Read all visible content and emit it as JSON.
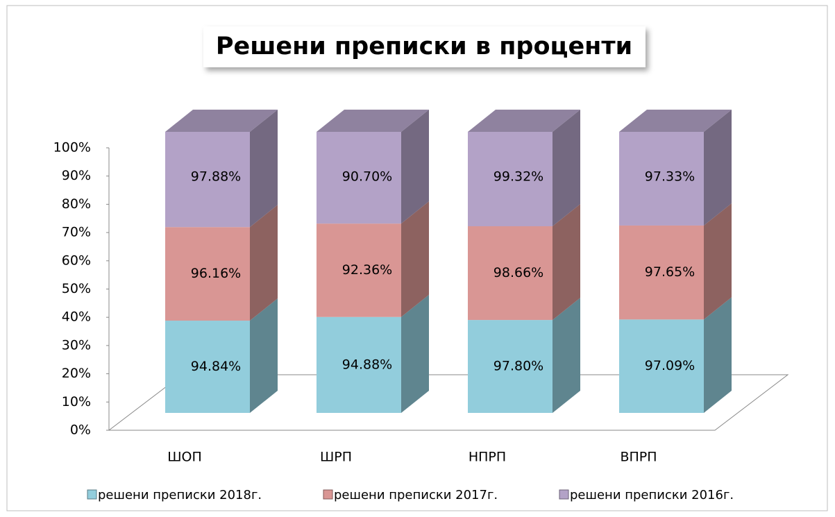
{
  "chart_data": {
    "type": "bar",
    "stacking": "percent",
    "title": "Решени преписки в проценти",
    "categories": [
      "ШОП",
      "ШРП",
      "НПРП",
      "ВПРП"
    ],
    "series": [
      {
        "name": "решени преписки 2018г.",
        "color": "#92cddc",
        "values": [
          94.84,
          94.88,
          97.8,
          97.09
        ],
        "value_labels": [
          "94.84%",
          "94.88%",
          "97.80%",
          "97.09%"
        ]
      },
      {
        "name": "решени преписки 2017г.",
        "color": "#d99694",
        "values": [
          96.16,
          92.36,
          98.66,
          97.65
        ],
        "value_labels": [
          "96.16%",
          "92.36%",
          "98.66%",
          "97.65%"
        ]
      },
      {
        "name": "решени преписки 2016г.",
        "color": "#b3a2c7",
        "values": [
          97.88,
          90.7,
          99.32,
          97.33
        ],
        "value_labels": [
          "97.88%",
          "90.70%",
          "99.32%",
          "97.33%"
        ]
      }
    ],
    "ylim": [
      0,
      100
    ],
    "yticks": [
      {
        "value": 0,
        "label": "0%"
      },
      {
        "value": 10,
        "label": "10%"
      },
      {
        "value": 20,
        "label": "20%"
      },
      {
        "value": 30,
        "label": "30%"
      },
      {
        "value": 40,
        "label": "40%"
      },
      {
        "value": 50,
        "label": "50%"
      },
      {
        "value": 60,
        "label": "60%"
      },
      {
        "value": 70,
        "label": "70%"
      },
      {
        "value": 80,
        "label": "80%"
      },
      {
        "value": 90,
        "label": "90%"
      },
      {
        "value": 100,
        "label": "100%"
      }
    ],
    "legend": "bottom"
  }
}
